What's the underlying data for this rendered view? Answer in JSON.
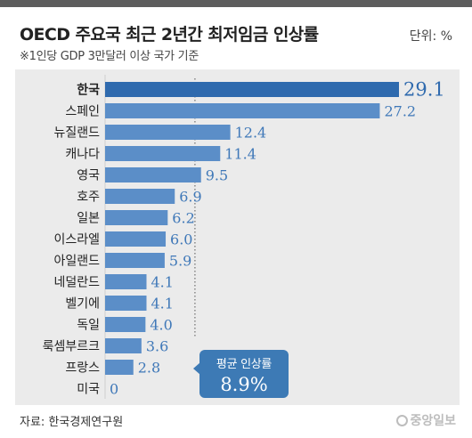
{
  "header": {
    "title": "OECD 주요국 최근 2년간 최저임금 인상률",
    "unit": "단위: %",
    "subtitle": "※1인당 GDP 3만달러 이상 국가 기준"
  },
  "footer": {
    "source": "자료: 한국경제연구원",
    "logo": "중앙일보"
  },
  "callout": {
    "label": "평균 인상률",
    "value": "8.9%"
  },
  "chart_data": {
    "type": "bar",
    "orientation": "horizontal",
    "categories": [
      "한국",
      "스페인",
      "뉴질랜드",
      "캐나다",
      "영국",
      "호주",
      "일본",
      "이스라엘",
      "아일랜드",
      "네덜란드",
      "벨기에",
      "독일",
      "룩셈부르크",
      "프랑스",
      "미국"
    ],
    "values": [
      29.1,
      27.2,
      12.4,
      11.4,
      9.5,
      6.9,
      6.2,
      6.0,
      5.9,
      4.1,
      4.1,
      4.0,
      3.6,
      2.8,
      0
    ],
    "value_labels": [
      "29.1",
      "27.2",
      "12.4",
      "11.4",
      "9.5",
      "6.9",
      "6.2",
      "6.0",
      "5.9",
      "4.1",
      "4.1",
      "4.0",
      "3.6",
      "2.8",
      "0"
    ],
    "reference_line": 8.9,
    "highlight": "한국",
    "colors": {
      "bar": "#5b8ec8",
      "highlight": "#2f6aae",
      "value_text": "#3f78b8",
      "highlight_text": "#2f6aae"
    },
    "xlim": [
      0,
      29.1
    ]
  }
}
